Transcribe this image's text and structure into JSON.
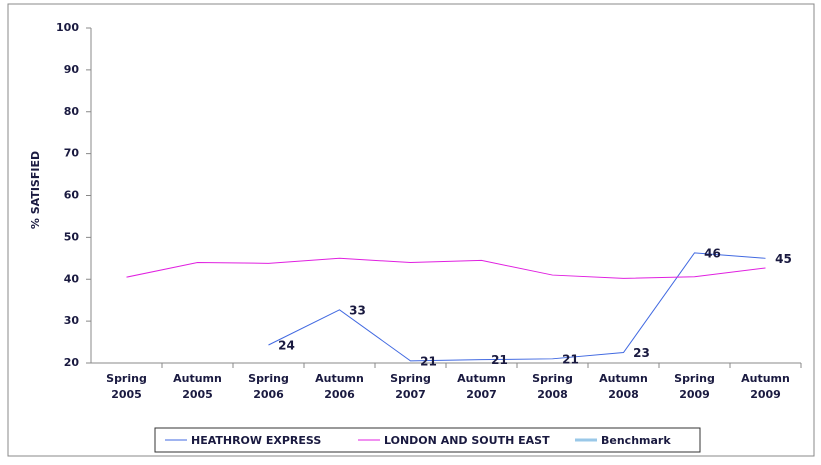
{
  "chart_data": {
    "type": "line",
    "y_label": "% SATISFIED",
    "categories": [
      "Spring 2005",
      "Autumn 2005",
      "Spring 2006",
      "Autumn 2006",
      "Spring 2007",
      "Autumn 2007",
      "Spring 2008",
      "Autumn 2008",
      "Spring 2009",
      "Autumn 2009"
    ],
    "series": [
      {
        "name": "HEATHROW EXPRESS",
        "color": "#4169e1",
        "values": [
          null,
          null,
          24.3,
          32.7,
          20.5,
          20.8,
          21.0,
          22.5,
          46.3,
          45.0
        ],
        "value_labels": [
          null,
          null,
          "24",
          "33",
          "21",
          "21",
          "21",
          "23",
          "46",
          "45"
        ]
      },
      {
        "name": "LONDON AND SOUTH EAST",
        "color": "#e020e0",
        "values": [
          40.5,
          44.0,
          43.8,
          45.0,
          44.0,
          44.5,
          41.0,
          40.2,
          40.6,
          42.7
        ]
      },
      {
        "name": "Benchmark",
        "color": "#9ac8e8",
        "values": [
          null,
          null,
          null,
          null,
          null,
          null,
          null,
          null,
          null,
          null
        ]
      }
    ],
    "ylim": [
      20,
      100
    ],
    "yticks": [
      20,
      30,
      40,
      50,
      60,
      70,
      80,
      90,
      100
    ],
    "grid": false
  }
}
